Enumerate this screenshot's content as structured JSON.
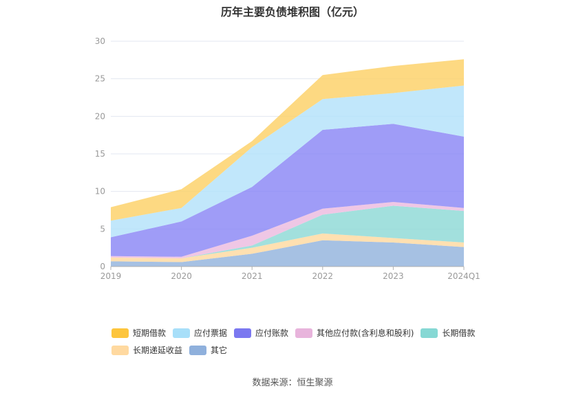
{
  "chart_data": {
    "type": "area",
    "stacked": true,
    "title": "历年主要负债堆积图（亿元）",
    "categories": [
      "2019",
      "2020",
      "2021",
      "2022",
      "2023",
      "2024Q1"
    ],
    "ylim": [
      0,
      30
    ],
    "yticks": [
      0,
      5,
      10,
      15,
      20,
      25,
      30
    ],
    "grid": true,
    "legend_position": "bottom",
    "series": [
      {
        "name": "其它",
        "color": "#93b3dd",
        "values": [
          0.7,
          0.6,
          1.7,
          3.5,
          3.2,
          2.6
        ]
      },
      {
        "name": "长期递延收益",
        "color": "#ffd9a0",
        "values": [
          0.5,
          0.5,
          0.8,
          0.9,
          0.6,
          0.6
        ]
      },
      {
        "name": "长期借款",
        "color": "#8dd9d6",
        "values": [
          0.0,
          0.0,
          0.3,
          2.5,
          4.3,
          4.2
        ]
      },
      {
        "name": "其他应付款(含利息和股利)",
        "color": "#ecbbdf",
        "values": [
          0.2,
          0.2,
          1.3,
          0.8,
          0.5,
          0.4
        ]
      },
      {
        "name": "应付账款",
        "color": "#8a86f5",
        "values": [
          2.5,
          4.7,
          6.5,
          10.5,
          10.4,
          9.5
        ]
      },
      {
        "name": "应付票据",
        "color": "#b3e2fa",
        "values": [
          2.2,
          1.8,
          5.3,
          4.1,
          4.1,
          6.8
        ]
      },
      {
        "name": "短期借款",
        "color": "#fdd166",
        "values": [
          1.8,
          2.5,
          0.8,
          3.2,
          3.6,
          3.5
        ]
      }
    ],
    "legend_order": [
      "短期借款",
      "应付票据",
      "应付账款",
      "其他应付款(含利息和股利)",
      "长期借款",
      "长期递延收益",
      "其它"
    ]
  },
  "legend_swatch_colors": {
    "短期借款": "#fdc53d",
    "应付票据": "#a8dff9",
    "应付账款": "#7b78f0",
    "其他应付款(含利息和股利)": "#e8b4dc",
    "长期借款": "#86d8d4",
    "长期递延收益": "#ffd9a0",
    "其它": "#8fb0dc"
  },
  "source": "数据来源：恒生聚源"
}
